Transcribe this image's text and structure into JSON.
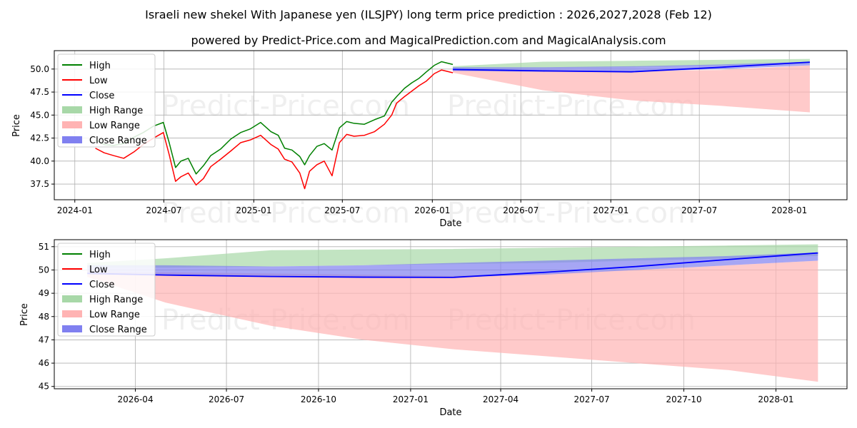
{
  "title": "Israeli new shekel With Japanese yen (ILSJPY) long term price prediction : 2026,2027,2028 (Feb 12)",
  "subtitle": "powered by Predict-Price.com and MagicalPrediction.com and MagicalAnalysis.com",
  "watermark": "Predict-Price.com",
  "colors": {
    "high": "#008000",
    "low": "#ff0000",
    "close": "#0000ff",
    "high_range": "#a8d8a8",
    "low_range": "#ffb3b3",
    "close_range": "#8080f0"
  },
  "chart_data": [
    {
      "type": "line",
      "panel": "top",
      "xlabel": "Date",
      "ylabel": "Price",
      "x_ticks": [
        "2024-01",
        "2024-07",
        "2025-01",
        "2025-07",
        "2026-01",
        "2026-07",
        "2027-01",
        "2027-07",
        "2028-01"
      ],
      "y_ticks": [
        "37.5",
        "40.0",
        "42.5",
        "45.0",
        "47.5",
        "50.0"
      ],
      "ylim": [
        35.8,
        52.0
      ],
      "legend": [
        "High",
        "Low",
        "Close",
        "High Range",
        "Low Range",
        "Close Range"
      ],
      "history_x": [
        "2024-02-12",
        "2024-03-01",
        "2024-03-20",
        "2024-04-10",
        "2024-05-01",
        "2024-05-20",
        "2024-06-10",
        "2024-06-30",
        "2024-07-12",
        "2024-07-25",
        "2024-08-05",
        "2024-08-20",
        "2024-09-05",
        "2024-09-20",
        "2024-10-05",
        "2024-10-25",
        "2024-11-15",
        "2024-12-05",
        "2024-12-25",
        "2025-01-15",
        "2025-02-05",
        "2025-02-20",
        "2025-03-05",
        "2025-03-20",
        "2025-04-05",
        "2025-04-15",
        "2025-04-25",
        "2025-05-10",
        "2025-05-25",
        "2025-06-10",
        "2025-06-25",
        "2025-07-10",
        "2025-07-25",
        "2025-08-15",
        "2025-09-05",
        "2025-09-25",
        "2025-10-10",
        "2025-10-20",
        "2025-11-05",
        "2025-11-20",
        "2025-12-05",
        "2025-12-20",
        "2026-01-05",
        "2026-01-20",
        "2026-02-12"
      ],
      "history_high": [
        42.3,
        41.8,
        41.7,
        41.9,
        42.6,
        43.1,
        43.8,
        44.2,
        42.0,
        39.3,
        40.0,
        40.3,
        38.6,
        39.5,
        40.6,
        41.3,
        42.4,
        43.1,
        43.5,
        44.2,
        43.2,
        42.8,
        41.4,
        41.2,
        40.5,
        39.6,
        40.6,
        41.6,
        41.9,
        41.2,
        43.6,
        44.3,
        44.1,
        44.0,
        44.5,
        44.9,
        46.4,
        47.0,
        47.9,
        48.5,
        49.0,
        49.7,
        50.4,
        50.8,
        50.5
      ],
      "history_low": [
        41.4,
        40.9,
        40.6,
        40.3,
        41.0,
        41.8,
        42.5,
        43.1,
        40.7,
        37.8,
        38.3,
        38.7,
        37.4,
        38.1,
        39.4,
        40.2,
        41.1,
        42.0,
        42.3,
        42.8,
        41.8,
        41.3,
        40.2,
        39.9,
        38.7,
        37.0,
        38.9,
        39.6,
        40.0,
        38.4,
        42.0,
        42.9,
        42.7,
        42.8,
        43.2,
        44.0,
        45.0,
        46.3,
        47.0,
        47.6,
        48.2,
        48.7,
        49.5,
        49.9,
        49.6
      ],
      "forecast_x": [
        "2026-02-12",
        "2026-08-15",
        "2027-02-12",
        "2027-08-15",
        "2028-02-12"
      ],
      "high_range_upper": [
        50.3,
        50.8,
        50.9,
        51.0,
        51.1
      ],
      "high_range_lower": [
        50.0,
        50.1,
        50.2,
        50.4,
        50.6
      ],
      "low_range_upper": [
        50.0,
        49.9,
        49.8,
        49.9,
        50.4
      ],
      "low_range_lower": [
        49.6,
        47.7,
        46.6,
        46.0,
        45.3
      ],
      "close_range_upper": [
        50.2,
        50.2,
        50.3,
        50.5,
        50.8
      ],
      "close_range_lower": [
        49.8,
        49.7,
        49.7,
        50.0,
        50.4
      ],
      "close_forecast": [
        49.95,
        49.8,
        49.7,
        50.2,
        50.75
      ]
    },
    {
      "type": "line",
      "panel": "bottom",
      "xlabel": "Date",
      "ylabel": "Price",
      "x_ticks": [
        "2026-04",
        "2026-07",
        "2026-10",
        "2027-01",
        "2027-04",
        "2027-07",
        "2027-10",
        "2028-01"
      ],
      "y_ticks": [
        "45",
        "46",
        "47",
        "48",
        "49",
        "50",
        "51"
      ],
      "ylim": [
        44.9,
        51.3
      ],
      "legend": [
        "High",
        "Low",
        "Close",
        "High Range",
        "Low Range",
        "Close Range"
      ],
      "forecast_x": [
        "2026-02-12",
        "2026-05-01",
        "2026-08-15",
        "2026-11-15",
        "2027-02-12",
        "2027-05-15",
        "2027-08-15",
        "2027-11-15",
        "2028-02-12"
      ],
      "high_range_upper": [
        50.3,
        50.5,
        50.85,
        50.88,
        50.9,
        50.95,
        51.0,
        51.05,
        51.1
      ],
      "high_range_lower": [
        50.1,
        50.1,
        50.15,
        50.2,
        50.25,
        50.3,
        50.4,
        50.5,
        50.6
      ],
      "low_range_upper": [
        49.95,
        49.9,
        49.85,
        49.8,
        49.75,
        49.85,
        50.0,
        50.2,
        50.4
      ],
      "low_range_lower": [
        49.7,
        48.6,
        47.6,
        47.0,
        46.6,
        46.3,
        46.0,
        45.7,
        45.2
      ],
      "close_range_upper": [
        50.2,
        50.2,
        50.15,
        50.2,
        50.3,
        50.4,
        50.5,
        50.6,
        50.75
      ],
      "close_range_lower": [
        49.85,
        49.8,
        49.72,
        49.7,
        49.68,
        49.8,
        50.0,
        50.2,
        50.4
      ],
      "close_forecast": [
        49.85,
        49.78,
        49.72,
        49.69,
        49.68,
        49.9,
        50.15,
        50.45,
        50.73
      ]
    }
  ]
}
